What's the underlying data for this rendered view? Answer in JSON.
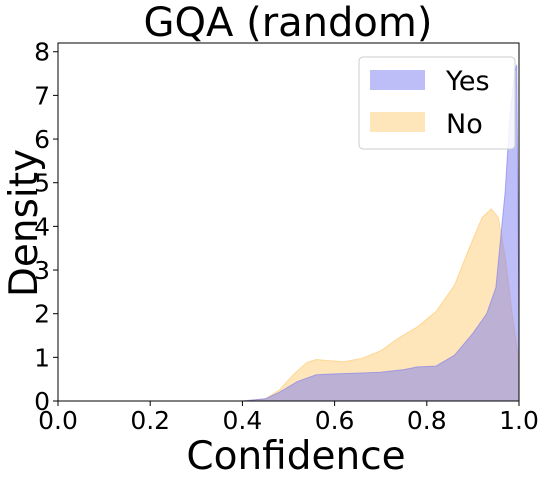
{
  "chart_data": {
    "type": "area",
    "title": "GQA (random)",
    "xlabel": "Confidence",
    "ylabel": "Density",
    "xlim": [
      0.0,
      1.0
    ],
    "ylim": [
      0,
      8.2
    ],
    "xticks": [
      "0.0",
      "0.2",
      "0.4",
      "0.6",
      "0.8",
      "1.0"
    ],
    "yticks": [
      "0",
      "1",
      "2",
      "3",
      "4",
      "5",
      "6",
      "7",
      "8"
    ],
    "grid": false,
    "legend_position": "top-right",
    "series": [
      {
        "name": "Yes",
        "color": "#7b7bf0",
        "opacity": 0.5,
        "x": [
          0.4,
          0.45,
          0.48,
          0.52,
          0.56,
          0.6,
          0.65,
          0.7,
          0.75,
          0.78,
          0.82,
          0.86,
          0.9,
          0.93,
          0.95,
          0.97,
          0.98,
          0.99,
          0.995,
          1.0
        ],
        "y": [
          0.0,
          0.05,
          0.2,
          0.45,
          0.6,
          0.62,
          0.64,
          0.66,
          0.72,
          0.78,
          0.8,
          1.05,
          1.55,
          2.0,
          2.6,
          4.8,
          6.5,
          7.5,
          7.7,
          1.9
        ]
      },
      {
        "name": "No",
        "color": "#fdc665",
        "opacity": 0.45,
        "x": [
          0.4,
          0.45,
          0.48,
          0.51,
          0.54,
          0.56,
          0.58,
          0.62,
          0.66,
          0.7,
          0.74,
          0.78,
          0.82,
          0.86,
          0.89,
          0.92,
          0.94,
          0.955,
          0.97,
          0.985,
          1.0
        ],
        "y": [
          0.0,
          0.05,
          0.25,
          0.6,
          0.88,
          0.95,
          0.93,
          0.9,
          0.98,
          1.15,
          1.45,
          1.7,
          2.05,
          2.65,
          3.45,
          4.2,
          4.4,
          4.2,
          3.3,
          2.0,
          0.9
        ]
      }
    ]
  }
}
